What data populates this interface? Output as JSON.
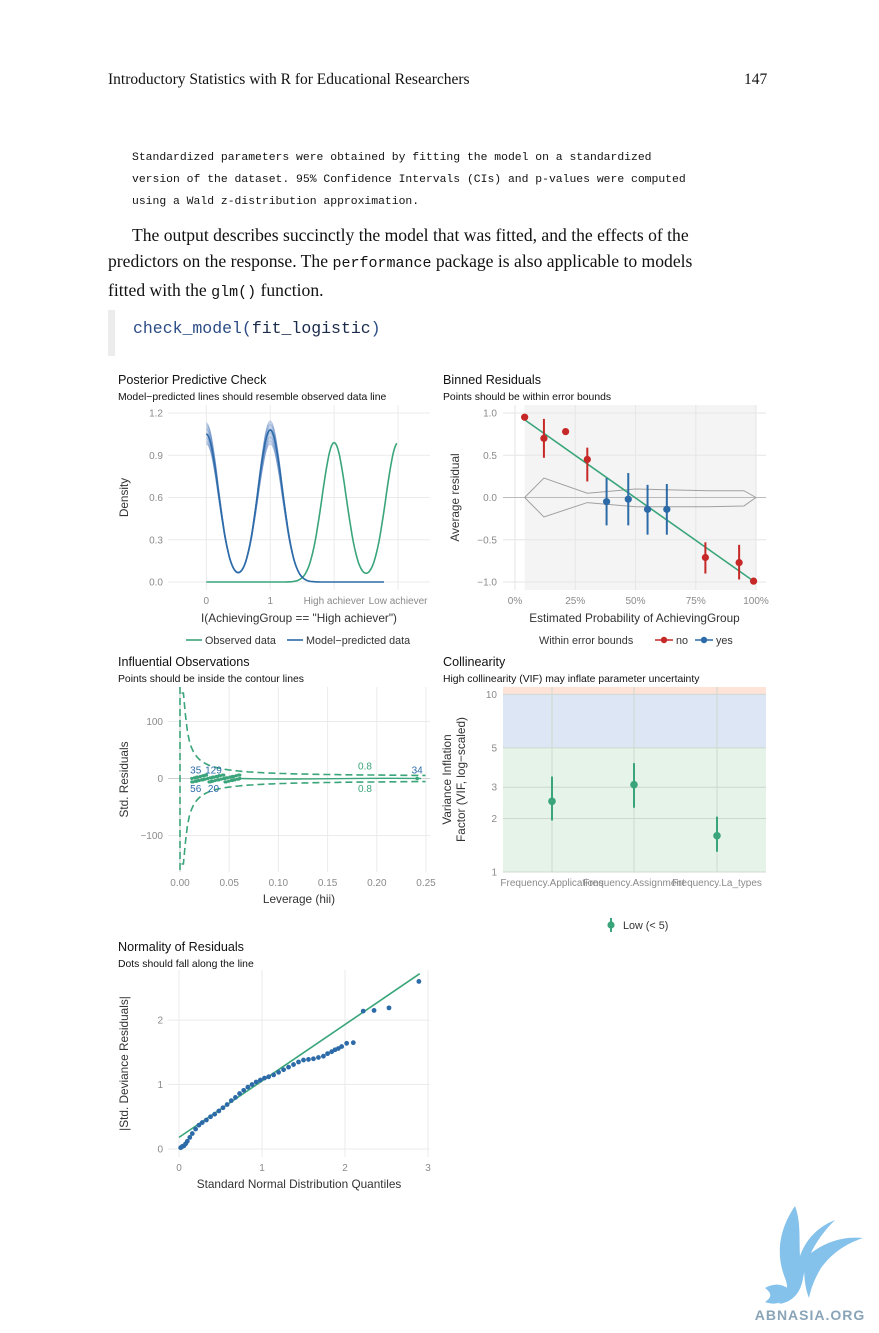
{
  "header": {
    "title": "Introductory Statistics with R for Educational Researchers",
    "page_number": "147"
  },
  "note_lines": [
    "Standardized parameters were obtained by fitting the model on a standardized",
    "version of the dataset. 95% Confidence Intervals (CIs) and p-values were computed",
    "using a Wald z-distribution approximation."
  ],
  "paragraph": {
    "l1": "The output describes succinctly the model that was fitted, and the effects of the",
    "l2a": "predictors on the response. The ",
    "l2code": "performance",
    "l2b": " package is also applicable to models",
    "l3a": "fitted with the ",
    "l3code": "glm()",
    "l3b": " function."
  },
  "code": {
    "fn": "check_model(",
    "arg": "fit_logistic",
    "close": ")"
  },
  "watermark": "ABNASIA.ORG",
  "colors": {
    "green": "#3aa57a",
    "blue": "#2c6ba8",
    "red": "#c62828",
    "grey": "#9e9e9e"
  },
  "chart_data": [
    {
      "type": "line",
      "title": "Posterior Predictive Check",
      "subtitle": "Model−predicted lines should resemble observed data line",
      "xlabel": "I(AchievingGroup == \"High achiever\")",
      "ylabel": "Density",
      "x_ticks": [
        "0",
        "1",
        "High achiever",
        "Low achiever"
      ],
      "y_ticks": [
        "0.0",
        "0.3",
        "0.6",
        "0.9",
        "1.2"
      ],
      "ylim": [
        0,
        1.2
      ],
      "legend": {
        "observed": "Observed data",
        "predicted": "Model−predicted data"
      },
      "series": [
        {
          "name": "Observed data",
          "peaks_at": [
            2,
            3
          ],
          "peak_density": 0.99
        },
        {
          "name": "Model−predicted data",
          "peaks_at": [
            0,
            1
          ],
          "peak_density": 1.12
        }
      ]
    },
    {
      "type": "scatter",
      "title": "Binned Residuals",
      "subtitle": "Points should be within error bounds",
      "xlabel": "Estimated Probability of AchievingGroup",
      "ylabel": "Average residual",
      "x_ticks": [
        "0%",
        "25%",
        "50%",
        "75%",
        "100%"
      ],
      "y_ticks": [
        "−1.0",
        "−0.5",
        "0.0",
        "0.5",
        "1.0"
      ],
      "xlim": [
        0,
        1
      ],
      "ylim": [
        -1,
        1
      ],
      "legend": {
        "title": "Within error bounds",
        "no": "no",
        "yes": "yes"
      },
      "points": [
        {
          "x": 0.04,
          "y": 0.95,
          "lo": 0.95,
          "hi": 0.95,
          "within": "no"
        },
        {
          "x": 0.12,
          "y": 0.7,
          "lo": 0.47,
          "hi": 0.93,
          "within": "no"
        },
        {
          "x": 0.21,
          "y": 0.78,
          "lo": 0.78,
          "hi": 0.78,
          "within": "no"
        },
        {
          "x": 0.3,
          "y": 0.45,
          "lo": 0.19,
          "hi": 0.59,
          "within": "no"
        },
        {
          "x": 0.38,
          "y": -0.05,
          "lo": -0.33,
          "hi": 0.23,
          "within": "yes"
        },
        {
          "x": 0.47,
          "y": -0.02,
          "lo": -0.33,
          "hi": 0.29,
          "within": "yes"
        },
        {
          "x": 0.55,
          "y": -0.14,
          "lo": -0.44,
          "hi": 0.15,
          "within": "yes"
        },
        {
          "x": 0.63,
          "y": -0.14,
          "lo": -0.44,
          "hi": 0.16,
          "within": "yes"
        },
        {
          "x": 0.79,
          "y": -0.71,
          "lo": -0.9,
          "hi": -0.53,
          "within": "no"
        },
        {
          "x": 0.93,
          "y": -0.77,
          "lo": -0.97,
          "hi": -0.56,
          "within": "no"
        },
        {
          "x": 0.99,
          "y": -0.99,
          "lo": -0.99,
          "hi": -0.99,
          "within": "no"
        }
      ],
      "fit_line": [
        [
          0.04,
          0.92
        ],
        [
          0.99,
          -0.99
        ]
      ],
      "upper_bound": [
        [
          0.04,
          0.0
        ],
        [
          0.12,
          0.23
        ],
        [
          0.3,
          0.05
        ],
        [
          0.5,
          0.1
        ],
        [
          0.8,
          0.08
        ],
        [
          0.95,
          0.08
        ],
        [
          1.0,
          0.0
        ]
      ],
      "lower_bound": [
        [
          0.04,
          0.0
        ],
        [
          0.12,
          -0.23
        ],
        [
          0.3,
          -0.06
        ],
        [
          0.5,
          -0.11
        ],
        [
          0.8,
          -0.11
        ],
        [
          0.95,
          -0.1
        ],
        [
          1.0,
          0.0
        ]
      ]
    },
    {
      "type": "scatter",
      "title": "Influential Observations",
      "subtitle": "Points should be inside the contour lines",
      "xlabel": "Leverage (hii)",
      "ylabel": "Std. Residuals",
      "x_ticks": [
        "0.00",
        "0.05",
        "0.10",
        "0.15",
        "0.20",
        "0.25"
      ],
      "y_ticks": [
        "−100",
        "0",
        "100"
      ],
      "xlim": [
        0,
        0.25
      ],
      "ylim": [
        -150,
        150
      ],
      "labels": [
        {
          "text": "35",
          "x": 0.016,
          "y": 16,
          "color": "blue"
        },
        {
          "text": "129",
          "x": 0.034,
          "y": 16,
          "color": "blue"
        },
        {
          "text": "56",
          "x": 0.016,
          "y": -17,
          "color": "blue"
        },
        {
          "text": "20",
          "x": 0.034,
          "y": -17,
          "color": "blue"
        },
        {
          "text": "0.8",
          "x": 0.188,
          "y": 23,
          "color": "green"
        },
        {
          "text": "0.8",
          "x": 0.188,
          "y": -17,
          "color": "green"
        },
        {
          "text": "34",
          "x": 0.241,
          "y": 16,
          "color": "blue"
        }
      ]
    },
    {
      "type": "scatter",
      "title": "Collinearity",
      "subtitle": "High collinearity (VIF) may inflate parameter uncertainty",
      "xlabel": "",
      "ylabel": "Variance Inflation Factor (VIF, log−scaled)",
      "ylabel_lines": [
        "Variance Inflation",
        "Factor (VIF, log−scaled)"
      ],
      "log_y": true,
      "y_ticks": [
        "1",
        "2",
        "3",
        "5",
        "10"
      ],
      "ylim": [
        1,
        11
      ],
      "categories": [
        "Frequency.Applications",
        "Frequency.Assignment",
        "Frequency.La_types"
      ],
      "values": [
        2.5,
        3.1,
        1.6
      ],
      "ci": [
        [
          1.95,
          3.45
        ],
        [
          2.3,
          4.1
        ],
        [
          1.3,
          2.05
        ]
      ],
      "legend": {
        "label": "Low (< 5)"
      }
    },
    {
      "type": "scatter",
      "title": "Normality of Residuals",
      "subtitle": "Dots should fall along the line",
      "xlabel": "Standard Normal Distribution Quantiles",
      "ylabel": "|Std. Deviance Residuals|",
      "x_ticks": [
        "0",
        "1",
        "2",
        "3"
      ],
      "y_ticks": [
        "0",
        "1",
        "2"
      ],
      "xlim": [
        0,
        3
      ],
      "ylim": [
        0,
        2.7
      ],
      "fit_line": [
        [
          0.0,
          0.18
        ],
        [
          2.9,
          2.72
        ]
      ],
      "points": [
        [
          0.02,
          0.02
        ],
        [
          0.04,
          0.04
        ],
        [
          0.06,
          0.05
        ],
        [
          0.08,
          0.08
        ],
        [
          0.1,
          0.12
        ],
        [
          0.13,
          0.18
        ],
        [
          0.16,
          0.24
        ],
        [
          0.2,
          0.31
        ],
        [
          0.24,
          0.37
        ],
        [
          0.28,
          0.41
        ],
        [
          0.33,
          0.45
        ],
        [
          0.38,
          0.5
        ],
        [
          0.43,
          0.54
        ],
        [
          0.48,
          0.59
        ],
        [
          0.53,
          0.64
        ],
        [
          0.58,
          0.69
        ],
        [
          0.63,
          0.75
        ],
        [
          0.68,
          0.8
        ],
        [
          0.73,
          0.86
        ],
        [
          0.78,
          0.91
        ],
        [
          0.83,
          0.96
        ],
        [
          0.88,
          1.0
        ],
        [
          0.93,
          1.04
        ],
        [
          0.98,
          1.07
        ],
        [
          1.03,
          1.1
        ],
        [
          1.08,
          1.12
        ],
        [
          1.14,
          1.15
        ],
        [
          1.2,
          1.19
        ],
        [
          1.26,
          1.23
        ],
        [
          1.32,
          1.27
        ],
        [
          1.38,
          1.31
        ],
        [
          1.44,
          1.35
        ],
        [
          1.5,
          1.38
        ],
        [
          1.56,
          1.39
        ],
        [
          1.62,
          1.4
        ],
        [
          1.68,
          1.42
        ],
        [
          1.74,
          1.44
        ],
        [
          1.79,
          1.48
        ],
        [
          1.84,
          1.51
        ],
        [
          1.88,
          1.54
        ],
        [
          1.92,
          1.56
        ],
        [
          1.96,
          1.59
        ],
        [
          2.02,
          1.64
        ],
        [
          2.1,
          1.65
        ],
        [
          2.22,
          2.14
        ],
        [
          2.35,
          2.15
        ],
        [
          2.53,
          2.19
        ],
        [
          2.89,
          2.6
        ]
      ]
    }
  ]
}
